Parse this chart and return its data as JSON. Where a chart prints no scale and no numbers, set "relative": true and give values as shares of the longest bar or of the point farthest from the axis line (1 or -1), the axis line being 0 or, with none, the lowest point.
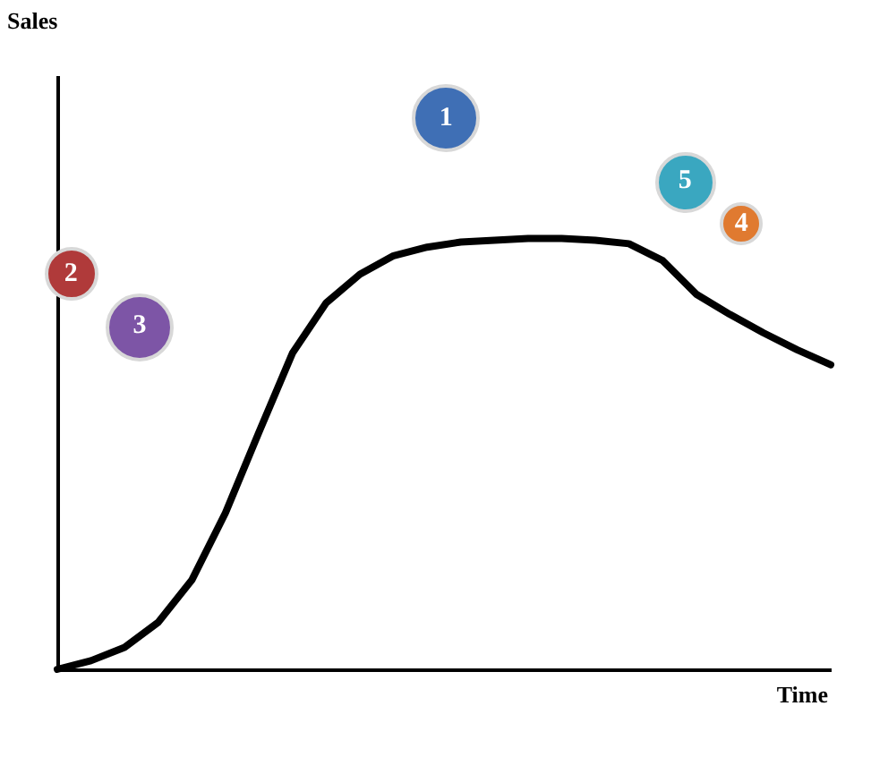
{
  "chart_data": {
    "type": "line",
    "xlabel": "Time",
    "relative": true,
    "categories": [
      null,
      null,
      null,
      null,
      null,
      null,
      null,
      null,
      null,
      null,
      null,
      null,
      null,
      null,
      null,
      null,
      null,
      null,
      null,
      null,
      null,
      null,
      null,
      null
    ],
    "series": [
      {
        "color": "#000000",
        "values": [
          0,
          0.02,
          0.051,
          0.109,
          0.207,
          0.363,
          0.551,
          0.735,
          0.851,
          0.917,
          0.96,
          0.98,
          0.992,
          0.996,
          1,
          1,
          0.996,
          0.988,
          0.949,
          0.871,
          0.824,
          0.781,
          0.742,
          0.707
        ]
      }
    ],
    "annotations": [
      "Sales",
      "2",
      "3",
      "1",
      "5",
      "4"
    ]
  }
}
